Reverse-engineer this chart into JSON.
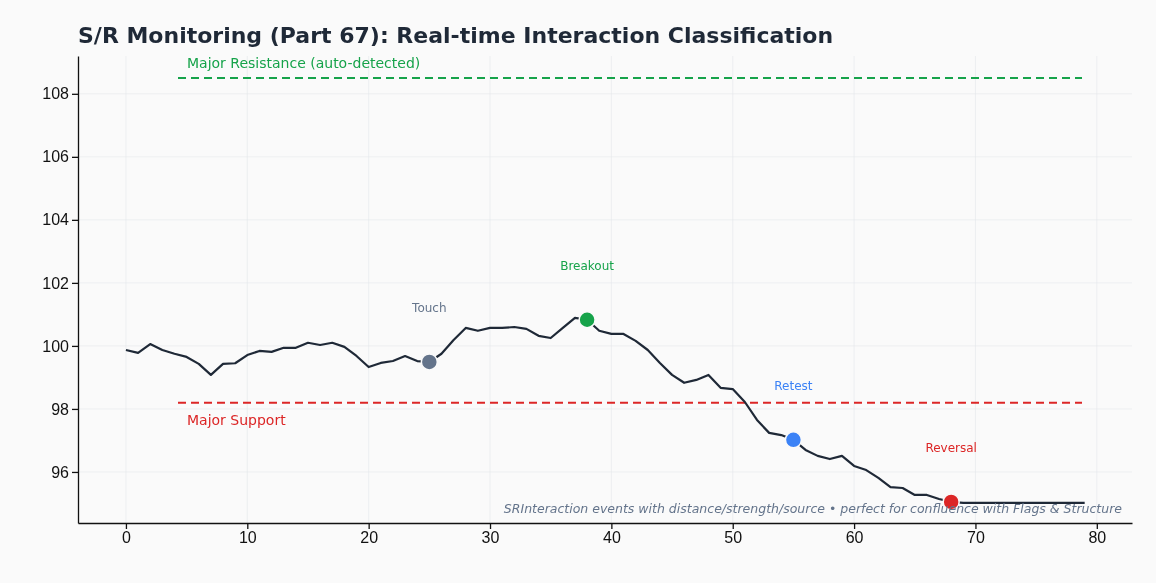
{
  "chart_data": {
    "type": "line",
    "title": "S/R Monitoring (Part 67): Real-time Interaction Classification",
    "xlim": [
      -3.95,
      82.9
    ],
    "ylim": [
      94.38,
      109.2
    ],
    "xticks": [
      0,
      10,
      20,
      30,
      40,
      50,
      60,
      70,
      80
    ],
    "yticks": [
      96,
      98,
      100,
      102,
      104,
      106,
      108
    ],
    "grid": true,
    "series": [
      {
        "color": "#1f2937",
        "x": [
          0,
          1,
          2,
          3,
          4,
          5,
          6,
          7,
          8,
          9,
          10,
          11,
          12,
          13,
          14,
          15,
          16,
          17,
          18,
          19,
          20,
          21,
          22,
          23,
          24,
          25,
          26,
          27,
          28,
          29,
          30,
          31,
          32,
          33,
          34,
          35,
          36,
          37,
          38,
          39,
          40,
          41,
          42,
          43,
          44,
          45,
          46,
          47,
          48,
          49,
          50,
          51,
          52,
          53,
          54,
          55,
          56,
          57,
          58,
          59,
          60,
          61,
          62,
          63,
          64,
          65,
          66,
          67,
          68,
          69,
          70,
          71,
          72,
          73,
          74,
          75,
          76,
          77,
          78,
          79
        ],
        "values": [
          99.87,
          99.78,
          100.06,
          99.87,
          99.75,
          99.65,
          99.43,
          99.08,
          99.43,
          99.45,
          99.71,
          99.84,
          99.81,
          99.94,
          99.94,
          100.1,
          100.03,
          100.1,
          99.97,
          99.68,
          99.33,
          99.46,
          99.52,
          99.68,
          99.52,
          99.49,
          99.75,
          100.19,
          100.57,
          100.48,
          100.57,
          100.57,
          100.6,
          100.54,
          100.32,
          100.25,
          100.57,
          100.89,
          100.83,
          100.48,
          100.38,
          100.38,
          100.16,
          99.87,
          99.46,
          99.08,
          98.83,
          98.92,
          99.08,
          98.67,
          98.63,
          98.22,
          97.65,
          97.24,
          97.17,
          97.02,
          96.7,
          96.51,
          96.41,
          96.51,
          96.19,
          96.06,
          95.81,
          95.52,
          95.49,
          95.27,
          95.27,
          95.14,
          95.05,
          95.02,
          95.02,
          95.02,
          95.02,
          95.02,
          95.02,
          95.02,
          95.02,
          95.02,
          95.02,
          95.02
        ]
      },
      {
        "type": "scatter",
        "marker": "circle",
        "x": [
          25,
          38,
          55,
          68
        ],
        "values": [
          99.49,
          100.83,
          97.02,
          95.05
        ],
        "colors": [
          "#64748b",
          "#16a34a",
          "#3b82f6",
          "#dc2626"
        ]
      }
    ],
    "ref_lines": [
      {
        "axis": "y",
        "value": 108.5,
        "label": "Major Resistance (auto-detected)",
        "color": "#16a34a",
        "line_style": "dashed"
      },
      {
        "axis": "y",
        "value": 98.2,
        "label": "Major Support",
        "color": "#dc2626",
        "line_style": "dashed"
      }
    ],
    "annotations": [
      "Touch",
      "Breakout",
      "Retest",
      "Reversal",
      "SRInteraction events with distance/strength/source • perfect for confluence with Flags & Structure"
    ]
  }
}
